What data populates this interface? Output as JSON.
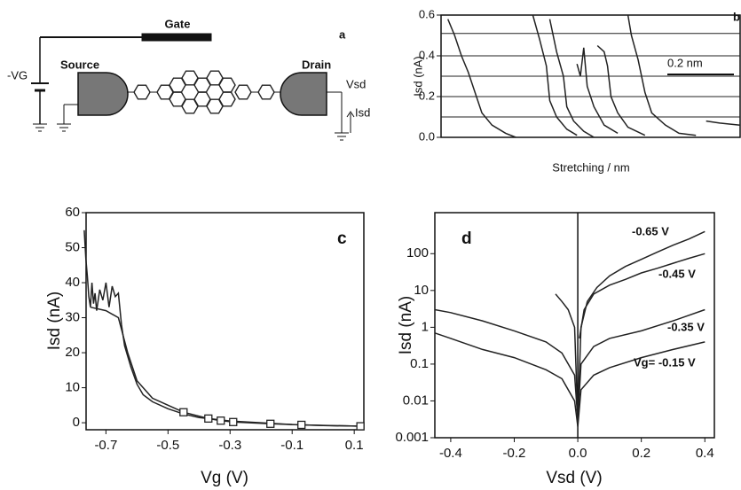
{
  "diagram": {
    "gate": "Gate",
    "panel": "a",
    "vg": "-VG",
    "source": "Source",
    "drain": "Drain",
    "vsd": "Vsd",
    "isd": "Isd"
  },
  "chart_data": [
    {
      "type": "line",
      "panel": "b",
      "y_label": "Isd (nA)",
      "x_label": "Stretching / nm",
      "scale_bar": "0.2 nm",
      "xlim": [
        0,
        0.88
      ],
      "ylim": [
        0,
        0.6
      ],
      "yticks": [
        {
          "value": 0,
          "label": "0.0"
        },
        0.2,
        0.4,
        0.6
      ],
      "hlines": [
        0.51,
        0.4,
        0.3,
        0.2,
        0.1
      ],
      "series": [
        {
          "color": "#222",
          "x": [
            0.02,
            0.04,
            0.06,
            0.08,
            0.1,
            0.12,
            0.15,
            0.19,
            0.22
          ],
          "values": [
            0.58,
            0.5,
            0.4,
            0.32,
            0.22,
            0.12,
            0.06,
            0.02,
            0
          ]
        },
        {
          "color": "#222",
          "x": [
            0.27,
            0.29,
            0.31,
            0.32,
            0.34,
            0.37,
            0.4
          ],
          "values": [
            0.6,
            0.48,
            0.35,
            0.18,
            0.1,
            0.04,
            0.01
          ]
        },
        {
          "color": "#222",
          "x": [
            0.32,
            0.34,
            0.36,
            0.37,
            0.39,
            0.42,
            0.45
          ],
          "values": [
            0.58,
            0.42,
            0.3,
            0.15,
            0.08,
            0.03,
            0
          ]
        },
        {
          "color": "#222",
          "x": [
            0.4,
            0.41,
            0.42,
            0.43,
            0.45,
            0.48,
            0.52
          ],
          "values": [
            0.36,
            0.3,
            0.44,
            0.25,
            0.15,
            0.06,
            0.02
          ]
        },
        {
          "color": "#222",
          "x": [
            0.46,
            0.48,
            0.49,
            0.5,
            0.52,
            0.55,
            0.6
          ],
          "values": [
            0.45,
            0.42,
            0.35,
            0.2,
            0.12,
            0.05,
            0.01
          ]
        },
        {
          "color": "#222",
          "x": [
            0.55,
            0.56,
            0.58,
            0.6,
            0.62,
            0.66,
            0.7,
            0.75
          ],
          "values": [
            0.6,
            0.5,
            0.38,
            0.22,
            0.12,
            0.06,
            0.02,
            0.01
          ]
        },
        {
          "color": "#222",
          "x": [
            0.78,
            0.82,
            0.88
          ],
          "values": [
            0.08,
            0.07,
            0.06
          ]
        }
      ]
    },
    {
      "type": "line",
      "panel": "c",
      "y_label": "Isd (nA)",
      "x_label": "Vg (V)",
      "xlim": [
        -0.764,
        0.131
      ],
      "ylim": [
        -2,
        60
      ],
      "xticks": [
        -0.7,
        -0.5,
        -0.3,
        -0.1,
        0.1
      ],
      "yticks": [
        0,
        10,
        20,
        30,
        40,
        50,
        60
      ],
      "series": [
        {
          "color": "#222",
          "x": [
            -0.77,
            -0.765,
            -0.76,
            -0.755,
            -0.75,
            -0.745,
            -0.74,
            -0.735,
            -0.73,
            -0.72,
            -0.71,
            -0.7,
            -0.69,
            -0.68,
            -0.67,
            -0.66,
            -0.65,
            -0.64,
            -0.62,
            -0.6,
            -0.58,
            -0.55,
            -0.5,
            -0.45,
            -0.4,
            -0.35,
            -0.3,
            -0.2,
            -0.1,
            0.0,
            0.13
          ],
          "values": [
            55,
            47,
            42,
            36,
            33,
            40,
            34,
            37,
            32,
            38,
            35,
            40,
            33,
            39,
            36,
            37,
            28,
            22,
            16,
            11,
            8,
            6,
            4,
            2.5,
            1.5,
            1,
            0.5,
            0,
            -0.5,
            -0.8,
            -1
          ]
        },
        {
          "color": "#222",
          "x": [
            -0.75,
            -0.7,
            -0.66,
            -0.63,
            -0.6,
            -0.55,
            -0.5,
            -0.45
          ],
          "values": [
            33,
            32,
            30,
            20,
            12,
            7,
            5,
            3
          ]
        },
        {
          "color": "#222",
          "marker": "square",
          "x": [
            -0.45,
            -0.37,
            -0.33,
            -0.29,
            -0.17,
            -0.07,
            0.12
          ],
          "values": [
            3,
            1.2,
            0.6,
            0.2,
            -0.3,
            -0.6,
            -1
          ]
        }
      ]
    },
    {
      "type": "line",
      "panel": "d",
      "y_label": "Isd (nA)",
      "x_label": "Vsd (V)",
      "log_y": true,
      "xlim": [
        -0.45,
        0.43
      ],
      "ylim": [
        0.001,
        1300
      ],
      "xticks": [
        -0.4,
        -0.2,
        {
          "value": 0,
          "label": "0.0"
        },
        0.2,
        0.4
      ],
      "yticks": [
        0.001,
        0.01,
        0.1,
        1,
        10,
        100
      ],
      "series": [
        {
          "name": "-0.65 V",
          "color": "#222",
          "x": [
            -0.07,
            -0.05,
            -0.03,
            -0.01,
            0,
            0.01,
            0.03,
            0.06,
            0.1,
            0.15,
            0.2,
            0.25,
            0.3,
            0.35,
            0.4
          ],
          "values": [
            8,
            5,
            3,
            1,
            0.003,
            1,
            5,
            12,
            25,
            45,
            70,
            110,
            170,
            250,
            400
          ]
        },
        {
          "name": "-0.45 V",
          "color": "#222",
          "x": [
            0.005,
            0.02,
            0.05,
            0.1,
            0.15,
            0.2,
            0.25,
            0.3,
            0.35,
            0.4
          ],
          "values": [
            0.5,
            3,
            8,
            14,
            20,
            30,
            40,
            55,
            75,
            100
          ]
        },
        {
          "name": "-0.35 V",
          "color": "#222",
          "x": [
            -0.45,
            -0.4,
            -0.3,
            -0.2,
            -0.1,
            -0.05,
            -0.01,
            0,
            0.01,
            0.05,
            0.1,
            0.2,
            0.3,
            0.4
          ],
          "values": [
            3,
            2.5,
            1.5,
            0.8,
            0.4,
            0.2,
            0.05,
            0.003,
            0.1,
            0.3,
            0.5,
            0.8,
            1.5,
            3
          ]
        },
        {
          "name": "Vg= -0.15 V",
          "color": "#222",
          "x": [
            -0.45,
            -0.4,
            -0.3,
            -0.2,
            -0.1,
            -0.05,
            -0.01,
            0,
            0.01,
            0.05,
            0.1,
            0.2,
            0.3,
            0.4
          ],
          "values": [
            0.7,
            0.5,
            0.25,
            0.15,
            0.07,
            0.04,
            0.01,
            0.002,
            0.02,
            0.05,
            0.08,
            0.15,
            0.25,
            0.4
          ]
        }
      ]
    }
  ]
}
